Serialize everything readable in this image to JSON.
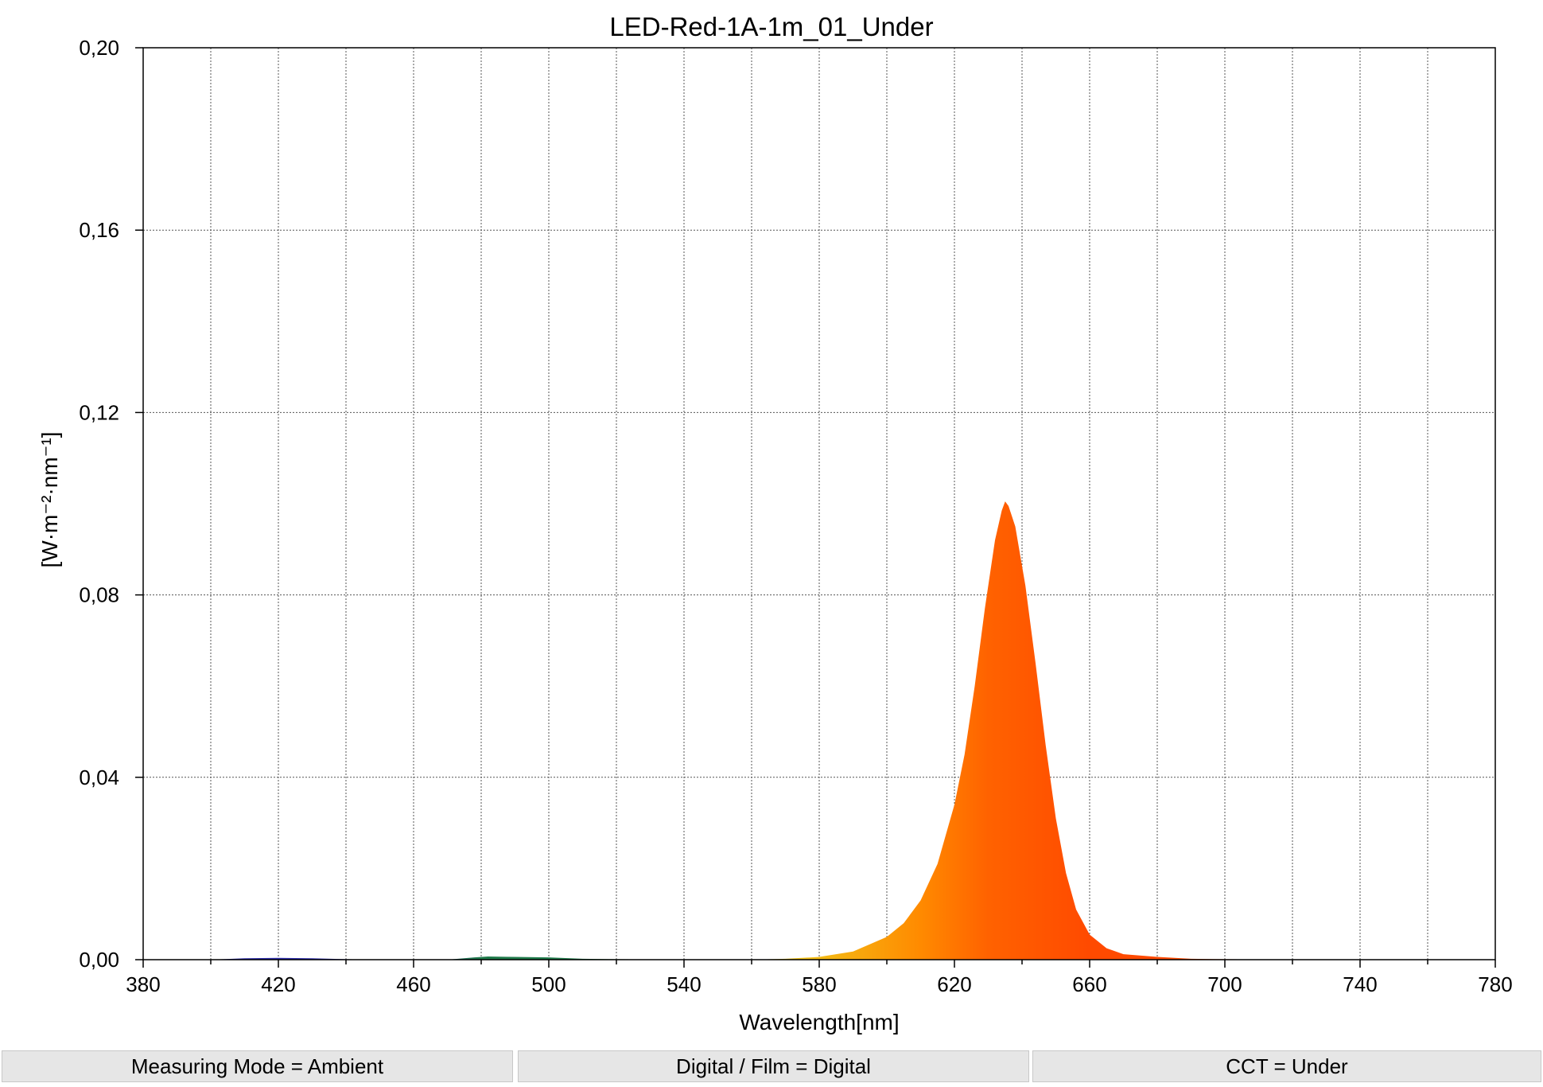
{
  "chart_data": {
    "type": "area",
    "title": "LED-Red-1A-1m_01_Under",
    "xlabel": "Wavelength[nm]",
    "ylabel": "[W·m⁻²·nm⁻¹]",
    "xlim": [
      380,
      780
    ],
    "ylim": [
      0,
      0.2
    ],
    "x_ticks": [
      "380",
      "420",
      "460",
      "500",
      "540",
      "580",
      "620",
      "660",
      "700",
      "740",
      "780"
    ],
    "y_ticks": [
      "0,00",
      "0,04",
      "0,08",
      "0,12",
      "0,16",
      "0,20"
    ],
    "grid": true,
    "fill_colors": [
      "#2a2aa8",
      "#1f7a4a",
      "#f2c218",
      "#ff8a00",
      "#ff6200",
      "#ff4a00"
    ],
    "series": [
      {
        "x": [
          380,
          400,
          410,
          420,
          430,
          440,
          450,
          460,
          470,
          478,
          482,
          490,
          500,
          510,
          520,
          540,
          560,
          570,
          580,
          590,
          600,
          605,
          610,
          615,
          620,
          623,
          626,
          629,
          632,
          634,
          635,
          636,
          638,
          641,
          644,
          647,
          650,
          653,
          656,
          660,
          665,
          670,
          680,
          690,
          700,
          720,
          780
        ],
        "values": [
          0,
          0,
          0.0003,
          0.0004,
          0.0003,
          0.0001,
          0,
          0,
          0,
          0.0005,
          0.0007,
          0.0006,
          0.0005,
          0.0002,
          0.0001,
          0,
          0,
          0.0002,
          0.0006,
          0.0018,
          0.005,
          0.008,
          0.013,
          0.021,
          0.034,
          0.045,
          0.06,
          0.077,
          0.092,
          0.0985,
          0.1005,
          0.0995,
          0.095,
          0.082,
          0.065,
          0.047,
          0.031,
          0.019,
          0.011,
          0.0055,
          0.0025,
          0.0012,
          0.0006,
          0.0002,
          0.0001,
          0,
          0
        ]
      }
    ]
  },
  "status_bar": {
    "measuring_mode": "Measuring Mode = Ambient",
    "digital_film": "Digital / Film = Digital",
    "cct": "CCT = Under"
  }
}
